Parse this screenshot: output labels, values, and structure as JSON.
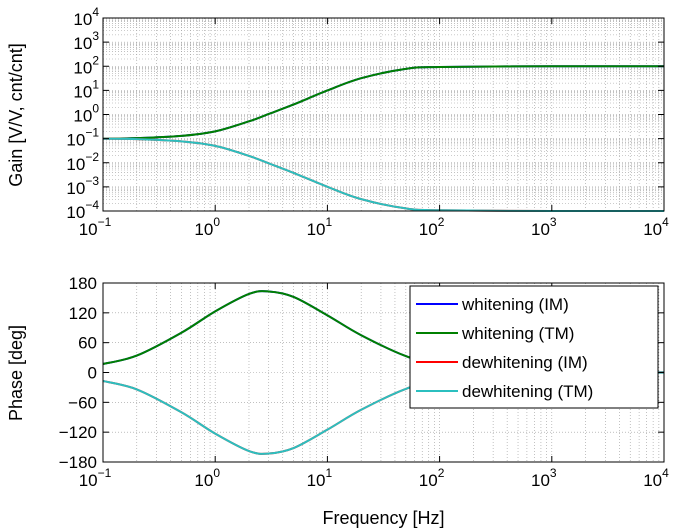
{
  "chart_data": [
    {
      "type": "line",
      "ylabel": "Gain [V/V, cnt/cnt]",
      "xlabel": "",
      "xscale": "log",
      "yscale": "log",
      "xlim": [
        0.1,
        10000
      ],
      "ylim": [
        0.0001,
        10000
      ],
      "grid": true,
      "x_ticks": [
        {
          "base": "10",
          "exp": "−1"
        },
        {
          "base": "10",
          "exp": "0"
        },
        {
          "base": "10",
          "exp": "1"
        },
        {
          "base": "10",
          "exp": "2"
        },
        {
          "base": "10",
          "exp": "3"
        },
        {
          "base": "10",
          "exp": "4"
        }
      ],
      "y_ticks": [
        {
          "base": "10",
          "exp": "−4"
        },
        {
          "base": "10",
          "exp": "−3"
        },
        {
          "base": "10",
          "exp": "−2"
        },
        {
          "base": "10",
          "exp": "−1"
        },
        {
          "base": "10",
          "exp": "0"
        },
        {
          "base": "10",
          "exp": "1"
        },
        {
          "base": "10",
          "exp": "2"
        },
        {
          "base": "10",
          "exp": "3"
        },
        {
          "base": "10",
          "exp": "4"
        }
      ],
      "x": [
        0.1,
        0.2,
        0.5,
        1,
        2,
        3,
        5,
        10,
        20,
        50,
        100,
        1000,
        10000
      ],
      "series": [
        {
          "name": "whitening (IM)",
          "color": "#0000ff",
          "values": [
            0.101,
            0.105,
            0.13,
            0.2,
            0.52,
            1.05,
            2.6,
            9.9,
            32,
            78,
            93,
            100,
            100
          ]
        },
        {
          "name": "whitening (TM)",
          "color": "#008000",
          "values": [
            0.101,
            0.105,
            0.13,
            0.2,
            0.52,
            1.05,
            2.6,
            9.9,
            32,
            78,
            93,
            100,
            100
          ]
        },
        {
          "name": "dewhitening (IM)",
          "color": "#ff0000",
          "values": [
            0.0989,
            0.0952,
            0.077,
            0.05,
            0.0192,
            0.0095,
            0.0038,
            0.00101,
            0.00031,
            0.000128,
            0.000107,
            0.0001,
            0.0001
          ]
        },
        {
          "name": "dewhitening (TM)",
          "color": "#2bbfbf",
          "values": [
            0.0989,
            0.0952,
            0.077,
            0.05,
            0.0192,
            0.0095,
            0.0038,
            0.00101,
            0.00031,
            0.000128,
            0.000107,
            0.0001,
            0.0001
          ]
        }
      ]
    },
    {
      "type": "line",
      "ylabel": "Phase [deg]",
      "xlabel": "Frequency [Hz]",
      "xscale": "log",
      "xlim": [
        0.1,
        10000
      ],
      "ylim": [
        -180,
        180
      ],
      "grid": true,
      "legend_position": "upper-right",
      "x_ticks": [
        {
          "base": "10",
          "exp": "−1"
        },
        {
          "base": "10",
          "exp": "0"
        },
        {
          "base": "10",
          "exp": "1"
        },
        {
          "base": "10",
          "exp": "2"
        },
        {
          "base": "10",
          "exp": "3"
        },
        {
          "base": "10",
          "exp": "4"
        }
      ],
      "y_ticks": [
        "−180",
        "−120",
        "−60",
        "0",
        "60",
        "120",
        "180"
      ],
      "x": [
        0.1,
        0.2,
        0.5,
        1,
        2,
        3,
        5,
        10,
        20,
        50,
        100,
        1000,
        10000
      ],
      "series": [
        {
          "name": "whitening (IM)",
          "color": "#0000ff",
          "values": [
            17,
            34,
            80,
            123,
            158,
            163,
            152,
            115,
            75,
            33,
            17,
            1.7,
            0.2
          ]
        },
        {
          "name": "whitening (TM)",
          "color": "#008000",
          "values": [
            17,
            34,
            80,
            123,
            158,
            163,
            152,
            115,
            75,
            33,
            17,
            1.7,
            0.2
          ]
        },
        {
          "name": "dewhitening (IM)",
          "color": "#ff0000",
          "values": [
            -17,
            -34,
            -80,
            -123,
            -158,
            -163,
            -152,
            -115,
            -75,
            -33,
            -17,
            -1.7,
            -0.2
          ]
        },
        {
          "name": "dewhitening (TM)",
          "color": "#2bbfbf",
          "values": [
            -17,
            -34,
            -80,
            -123,
            -158,
            -163,
            -152,
            -115,
            -75,
            -33,
            -17,
            -1.7,
            -0.2
          ]
        }
      ]
    }
  ]
}
